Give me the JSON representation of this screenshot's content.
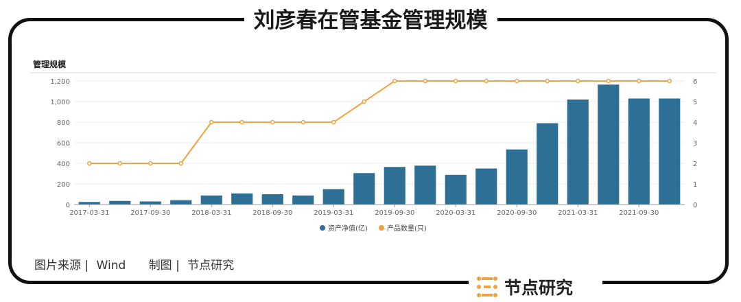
{
  "headline": "刘彦春在管基金管理规模",
  "chart_data": {
    "type": "bar",
    "title": "管理规模",
    "categories": [
      "2017-03-31",
      "2017-06-30",
      "2017-09-30",
      "2017-12-31",
      "2018-03-31",
      "2018-06-30",
      "2018-09-30",
      "2018-12-31",
      "2019-03-31",
      "2019-06-30",
      "2019-09-30",
      "2019-12-31",
      "2020-03-31",
      "2020-06-30",
      "2020-09-30",
      "2020-12-31",
      "2021-03-31",
      "2021-06-30",
      "2021-09-30",
      "2021-12-31"
    ],
    "x_tick_labels": [
      "2017-03-31",
      "2017-09-30",
      "2018-03-31",
      "2018-09-30",
      "2019-03-31",
      "2019-09-30",
      "2020-03-31",
      "2020-09-30",
      "2021-03-31",
      "2021-09-30"
    ],
    "series": [
      {
        "name": "资产净值(亿)",
        "type": "bar",
        "axis": "left",
        "color": "#2e6f96",
        "values": [
          25,
          35,
          30,
          42,
          88,
          108,
          100,
          88,
          150,
          305,
          365,
          378,
          288,
          350,
          535,
          790,
          1020,
          1165,
          1030,
          1030
        ]
      },
      {
        "name": "产品数量(只)",
        "type": "line",
        "axis": "right",
        "color": "#f0a23e",
        "values": [
          2,
          2,
          2,
          2,
          4,
          4,
          4,
          4,
          4,
          5,
          6,
          6,
          6,
          6,
          6,
          6,
          6,
          6,
          6,
          6
        ]
      }
    ],
    "left_ticks": [
      "0",
      "200",
      "400",
      "600",
      "800",
      "1,000",
      "1,200"
    ],
    "right_ticks": [
      "0",
      "1",
      "2",
      "3",
      "4",
      "5",
      "6"
    ],
    "ylim_left": [
      0,
      1200
    ],
    "ylim_right": [
      0,
      6
    ],
    "grid": true,
    "legend_position": "bottom-center"
  },
  "source": {
    "label": "图片来源 |",
    "value": "Wind",
    "maker_label": "制图 |",
    "maker_value": "节点研究"
  },
  "brand": {
    "name": "节点研究",
    "icon": "grid-logo-icon",
    "logo_color": "#f0a23e"
  }
}
